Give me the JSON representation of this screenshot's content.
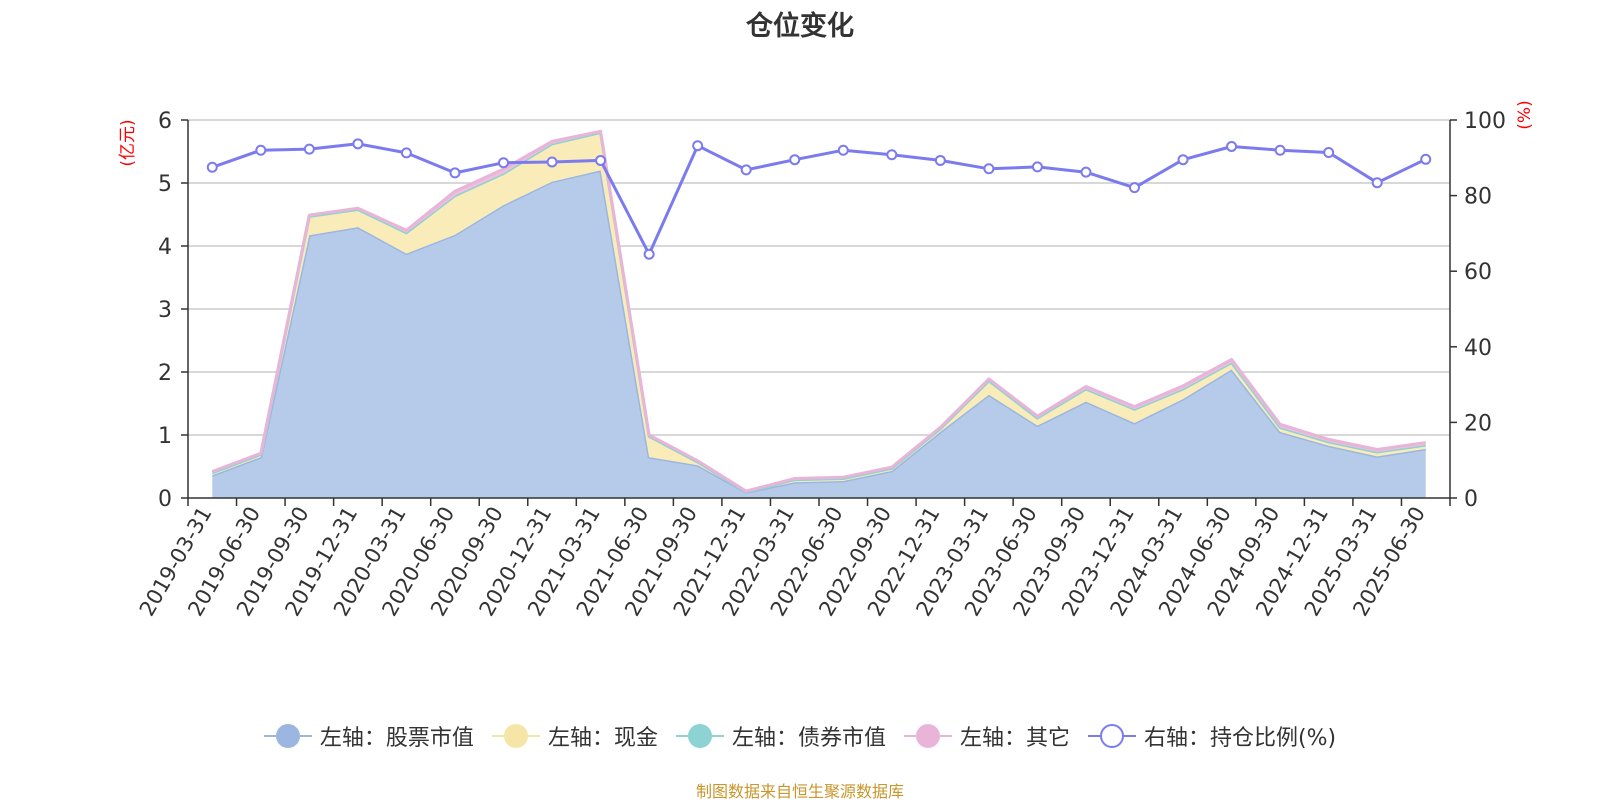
{
  "chart_data": {
    "type": "area",
    "title": "仓位变化",
    "left_axis_label": "(亿元)",
    "right_axis_label": "(%)",
    "left_ylim": [
      0,
      6
    ],
    "left_ticks": [
      0,
      1,
      2,
      3,
      4,
      5,
      6
    ],
    "right_ylim": [
      0,
      100
    ],
    "right_ticks": [
      0,
      20,
      40,
      60,
      80,
      100
    ],
    "grid": true,
    "legend_position": "bottom",
    "categories": [
      "2019-03-31",
      "2019-06-30",
      "2019-09-30",
      "2019-12-31",
      "2020-03-31",
      "2020-06-30",
      "2020-09-30",
      "2020-12-31",
      "2021-03-31",
      "2021-06-30",
      "2021-09-30",
      "2021-12-31",
      "2022-03-31",
      "2022-06-30",
      "2022-09-30",
      "2022-12-31",
      "2023-03-31",
      "2023-06-30",
      "2023-09-30",
      "2023-12-31",
      "2024-03-31",
      "2024-06-30",
      "2024-09-30",
      "2024-12-31",
      "2025-03-31",
      "2025-06-30"
    ],
    "series": [
      {
        "name": "左轴：股票市值",
        "axis": "left",
        "type": "area",
        "color": "#9bb6e0",
        "fill": "#b6cbea",
        "values": [
          0.36,
          0.65,
          4.17,
          4.3,
          3.88,
          4.18,
          4.65,
          5.02,
          5.2,
          0.65,
          0.52,
          0.09,
          0.25,
          0.27,
          0.43,
          1.05,
          1.64,
          1.15,
          1.53,
          1.19,
          1.57,
          2.04,
          1.05,
          0.83,
          0.66,
          0.78
        ]
      },
      {
        "name": "左轴：现金",
        "axis": "left",
        "type": "area",
        "color": "#f5e6a8",
        "fill": "#faecb9",
        "values": [
          0.04,
          0.04,
          0.3,
          0.28,
          0.33,
          0.62,
          0.5,
          0.6,
          0.6,
          0.33,
          0.05,
          0.01,
          0.04,
          0.04,
          0.04,
          0.05,
          0.22,
          0.12,
          0.2,
          0.22,
          0.16,
          0.11,
          0.07,
          0.06,
          0.07,
          0.06
        ]
      },
      {
        "name": "左轴：债券市值",
        "axis": "left",
        "type": "area",
        "color": "#8dd3d3",
        "fill": "#a8e0dc",
        "values": [
          0,
          0,
          0,
          0,
          0,
          0,
          0,
          0,
          0,
          0,
          0,
          0,
          0,
          0,
          0,
          0,
          0,
          0,
          0,
          0,
          0,
          0,
          0,
          0,
          0,
          0
        ]
      },
      {
        "name": "左轴：其它",
        "axis": "left",
        "type": "area",
        "color": "#e8b4d8",
        "fill": "#eebfdf",
        "values": [
          0.02,
          0.02,
          0.02,
          0.02,
          0.04,
          0.07,
          0.07,
          0.04,
          0.02,
          0.02,
          0.02,
          0.01,
          0.02,
          0.02,
          0.02,
          0.02,
          0.03,
          0.03,
          0.04,
          0.04,
          0.05,
          0.05,
          0.05,
          0.04,
          0.04,
          0.04
        ]
      },
      {
        "name": "右轴：持仓比例(%)",
        "axis": "right",
        "type": "line",
        "color": "#7b7bef",
        "values": [
          87.5,
          92.0,
          92.3,
          93.7,
          91.3,
          86.0,
          88.7,
          88.9,
          89.3,
          64.5,
          93.2,
          86.8,
          89.5,
          92.0,
          90.8,
          89.3,
          87.1,
          87.6,
          86.2,
          82.1,
          89.5,
          93.0,
          92.0,
          91.4,
          83.4,
          89.6
        ]
      }
    ]
  },
  "source_note": "制图数据来自恒生聚源数据库",
  "colors": {
    "title": "#333333",
    "axis_text": "#333333",
    "axis_unit": "#ff0000",
    "grid": "#cccccc",
    "source_note": "#c8962c"
  }
}
